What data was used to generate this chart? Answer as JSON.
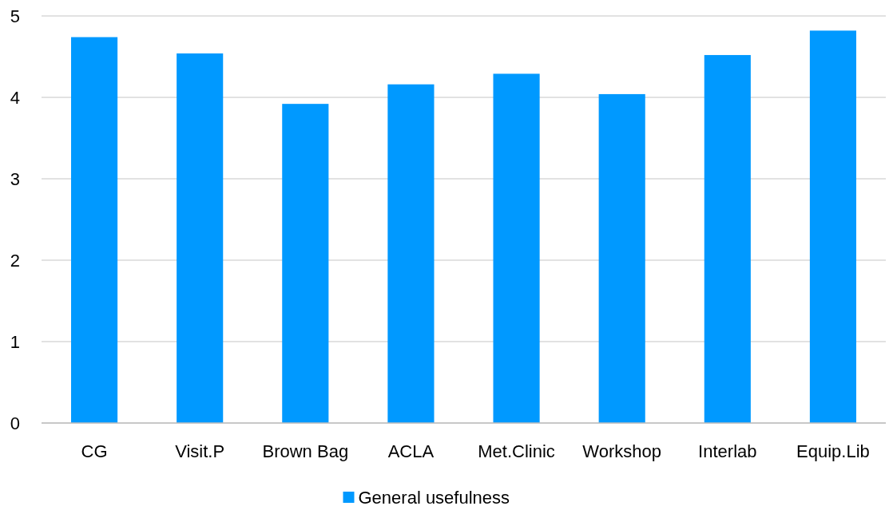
{
  "chart_data": {
    "type": "bar",
    "categories": [
      "CG",
      "Visit.P",
      "Brown Bag",
      "ACLA",
      "Met.Clinic",
      "Workshop",
      "Interlab",
      "Equip.Lib"
    ],
    "series": [
      {
        "name": "General usefulness",
        "color": "#0099ff",
        "values": [
          4.74,
          4.54,
          3.92,
          4.16,
          4.29,
          4.04,
          4.52,
          4.82
        ]
      }
    ],
    "ylim": [
      0,
      5
    ],
    "yticks": [
      0,
      1,
      2,
      3,
      4,
      5
    ],
    "grid": "y",
    "legend": "bottom"
  }
}
